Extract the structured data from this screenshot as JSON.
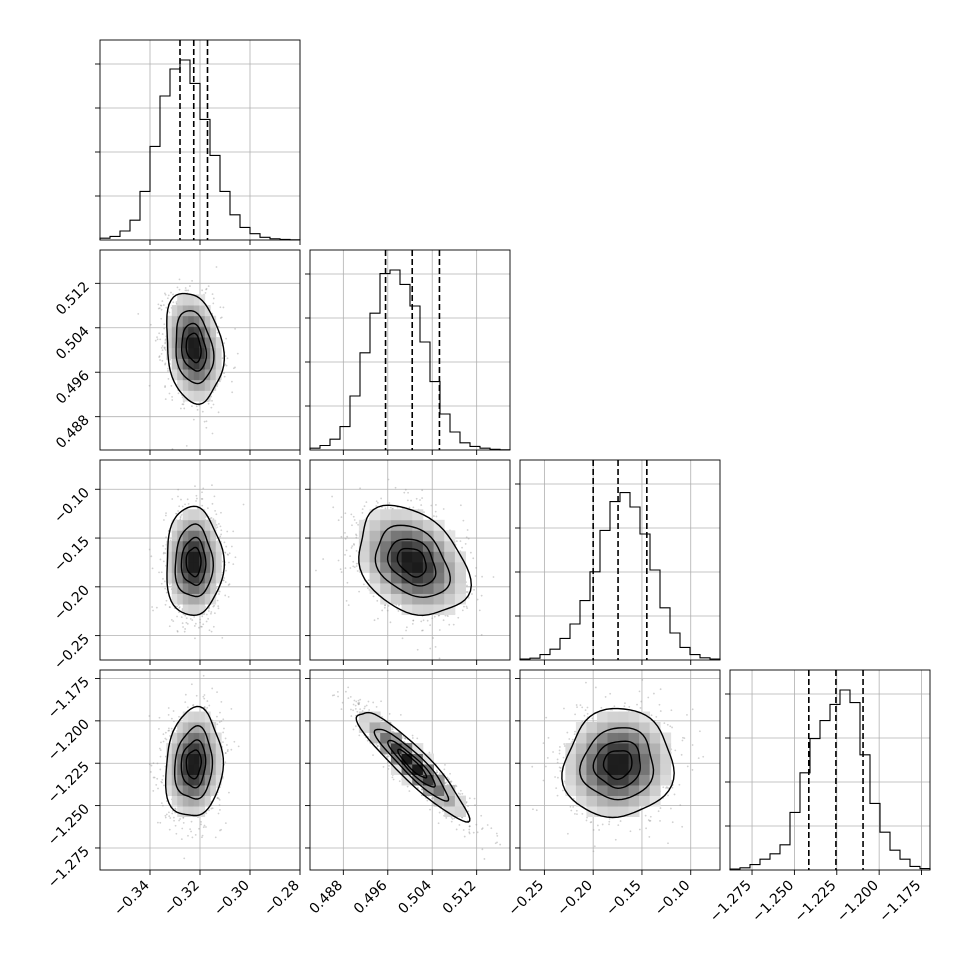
{
  "chart_data": {
    "type": "corner",
    "parameters": [
      {
        "range": [
          -0.36,
          -0.28
        ],
        "ticks": [
          -0.34,
          -0.32,
          -0.3,
          -0.28
        ],
        "tick_labels": [
          "−0.34",
          "−0.32",
          "−0.30",
          "−0.28"
        ],
        "quantiles": [
          -0.328,
          -0.3225,
          -0.317
        ],
        "mean": -0.3225,
        "std": 0.0055
      },
      {
        "range": [
          0.482,
          0.518
        ],
        "ticks": [
          0.488,
          0.496,
          0.504,
          0.512
        ],
        "tick_labels": [
          "0.488",
          "0.496",
          "0.504",
          "0.512"
        ],
        "quantiles": [
          0.4956,
          0.5004,
          0.5053
        ],
        "mean": 0.5004,
        "std": 0.0048
      },
      {
        "range": [
          -0.275,
          -0.07
        ],
        "ticks": [
          -0.25,
          -0.2,
          -0.15,
          -0.1
        ],
        "tick_labels": [
          "−0.25",
          "−0.20",
          "−0.15",
          "−0.10"
        ],
        "tick_labels_y": [
          "−0.25",
          "−0.20",
          "−0.15",
          "−0.10"
        ],
        "quantiles": [
          -0.2,
          -0.1745,
          -0.145
        ],
        "mean": -0.1745,
        "std": 0.027
      },
      {
        "range": [
          -1.288,
          -1.17
        ],
        "ticks": [
          -1.275,
          -1.25,
          -1.225,
          -1.2,
          -1.175
        ],
        "tick_labels": [
          "−1.275",
          "−1.250",
          "−1.225",
          "−1.200",
          "−1.175"
        ],
        "quantiles": [
          -1.2415,
          -1.2255,
          -1.2095
        ],
        "mean": -1.2255,
        "std": 0.0155
      }
    ],
    "correlations": [
      {
        "i": 1,
        "j": 0,
        "rho": -0.2
      },
      {
        "i": 2,
        "j": 0,
        "rho": 0.0
      },
      {
        "i": 2,
        "j": 1,
        "rho": -0.3
      },
      {
        "i": 3,
        "j": 0,
        "rho": 0.1
      },
      {
        "i": 3,
        "j": 1,
        "rho": -0.92
      },
      {
        "i": 3,
        "j": 2,
        "rho": 0.05
      }
    ],
    "histogram": {
      "bins": 20,
      "relative_heights": [
        [
          0.01,
          0.02,
          0.05,
          0.11,
          0.27,
          0.52,
          0.8,
          0.95,
          1.0,
          0.87,
          0.67,
          0.47,
          0.27,
          0.14,
          0.07,
          0.035,
          0.015,
          0.007,
          0.003,
          0.001
        ],
        [
          0.01,
          0.025,
          0.06,
          0.13,
          0.3,
          0.54,
          0.76,
          0.98,
          1.0,
          0.92,
          0.8,
          0.6,
          0.38,
          0.2,
          0.1,
          0.04,
          0.02,
          0.01,
          0.004,
          0.001
        ],
        [
          0.005,
          0.01,
          0.03,
          0.06,
          0.12,
          0.2,
          0.33,
          0.49,
          0.72,
          0.88,
          0.93,
          0.85,
          0.7,
          0.5,
          0.29,
          0.15,
          0.07,
          0.03,
          0.012,
          0.005
        ],
        [
          0.005,
          0.012,
          0.03,
          0.06,
          0.09,
          0.14,
          0.32,
          0.54,
          0.73,
          0.83,
          0.92,
          1.0,
          0.93,
          0.64,
          0.37,
          0.21,
          0.11,
          0.06,
          0.02,
          0.008
        ]
      ]
    },
    "contour_levels_sigma": [
      0.5,
      1.0,
      1.5,
      2.0
    ],
    "grid": true,
    "quantile_lines": "dashed"
  }
}
